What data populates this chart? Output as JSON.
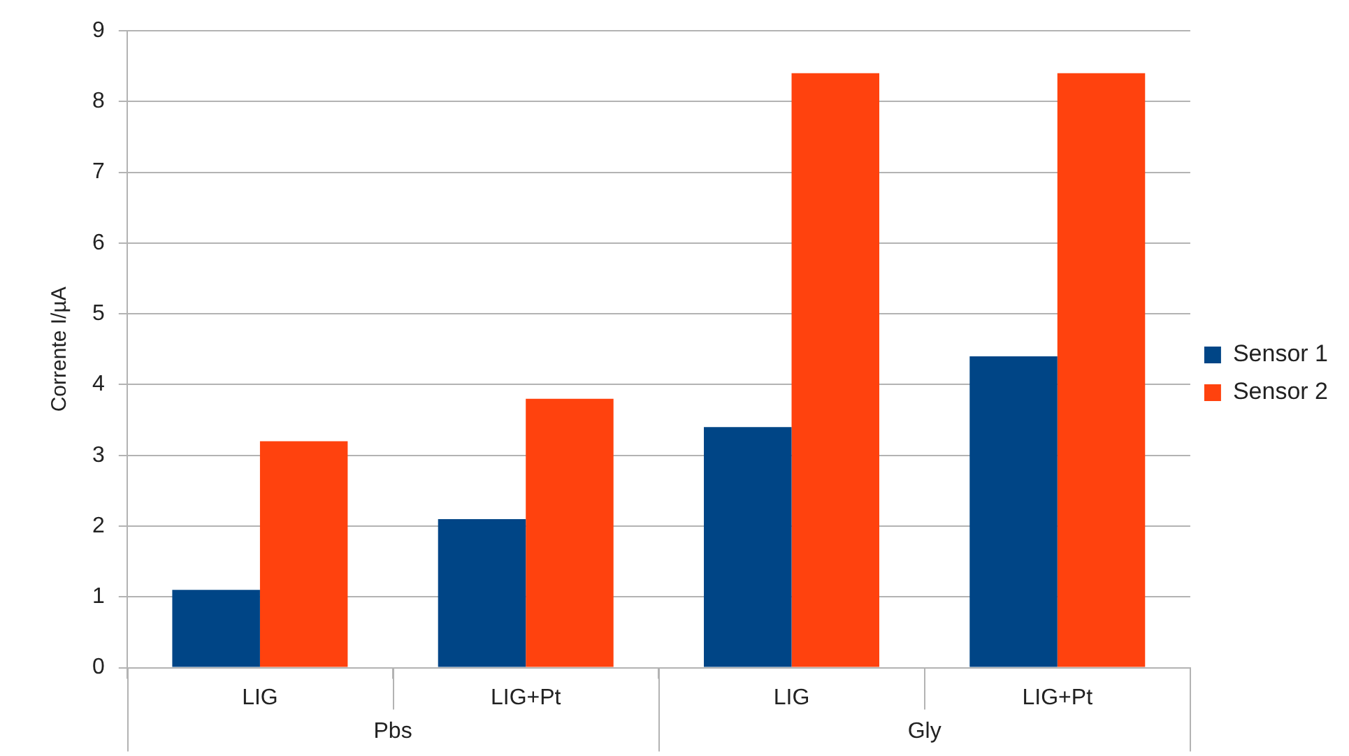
{
  "chart_data": {
    "type": "bar",
    "ylabel": "Corrente I/µA",
    "categories": [
      "LIG",
      "LIG+Pt",
      "LIG",
      "LIG+Pt"
    ],
    "series": [
      {
        "name": "Sensor 1",
        "color": "#004586",
        "values": [
          1.1,
          2.1,
          3.4,
          4.4
        ]
      },
      {
        "name": "Sensor 2",
        "color": "#ff420e",
        "values": [
          3.2,
          3.8,
          8.4,
          8.4
        ]
      }
    ],
    "annotations": [
      "Pbs",
      "Gly"
    ],
    "ylim": [
      0,
      9
    ],
    "yticks": [
      0,
      1,
      2,
      3,
      4,
      5,
      6,
      7,
      8,
      9
    ],
    "grid": "y",
    "legend": "right"
  }
}
